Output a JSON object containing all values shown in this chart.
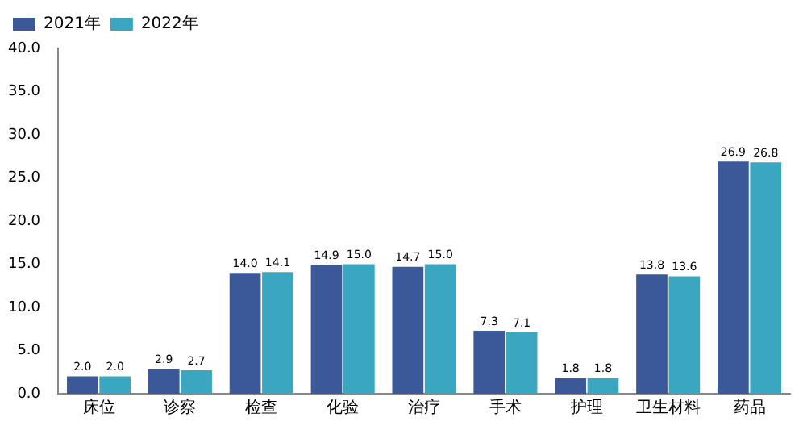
{
  "chart_data": {
    "type": "bar",
    "categories": [
      "床位",
      "诊察",
      "检查",
      "化验",
      "治疗",
      "手术",
      "护理",
      "卫生材料",
      "药品"
    ],
    "series": [
      {
        "name": "2021年",
        "color": "#3b5998",
        "values": [
          2.0,
          2.9,
          14.0,
          14.9,
          14.7,
          7.3,
          1.8,
          13.8,
          26.9
        ],
        "value_labels": [
          "2.0",
          "2.9",
          "14.0",
          "14.9",
          "14.7",
          "7.3",
          "1.8",
          "13.8",
          "26.9"
        ]
      },
      {
        "name": "2022年",
        "color": "#3aa6c0",
        "values": [
          2.0,
          2.7,
          14.1,
          15.0,
          15.0,
          7.1,
          1.8,
          13.6,
          26.8
        ],
        "value_labels": [
          "2.0",
          "2.7",
          "14.1",
          "15.0",
          "15.0",
          "7.1",
          "1.8",
          "13.6",
          "26.8"
        ]
      }
    ],
    "ylim": [
      0,
      40
    ],
    "yticks": [
      {
        "value": 0,
        "label": "0.0"
      },
      {
        "value": 5,
        "label": "5.0"
      },
      {
        "value": 10,
        "label": "10.0"
      },
      {
        "value": 15,
        "label": "15.0"
      },
      {
        "value": 20,
        "label": "20.0"
      },
      {
        "value": 25,
        "label": "25.0"
      },
      {
        "value": 30,
        "label": "30.0"
      },
      {
        "value": 35,
        "label": "35.0"
      },
      {
        "value": 40,
        "label": "40.0"
      }
    ],
    "grid": false,
    "legend": "top left"
  }
}
